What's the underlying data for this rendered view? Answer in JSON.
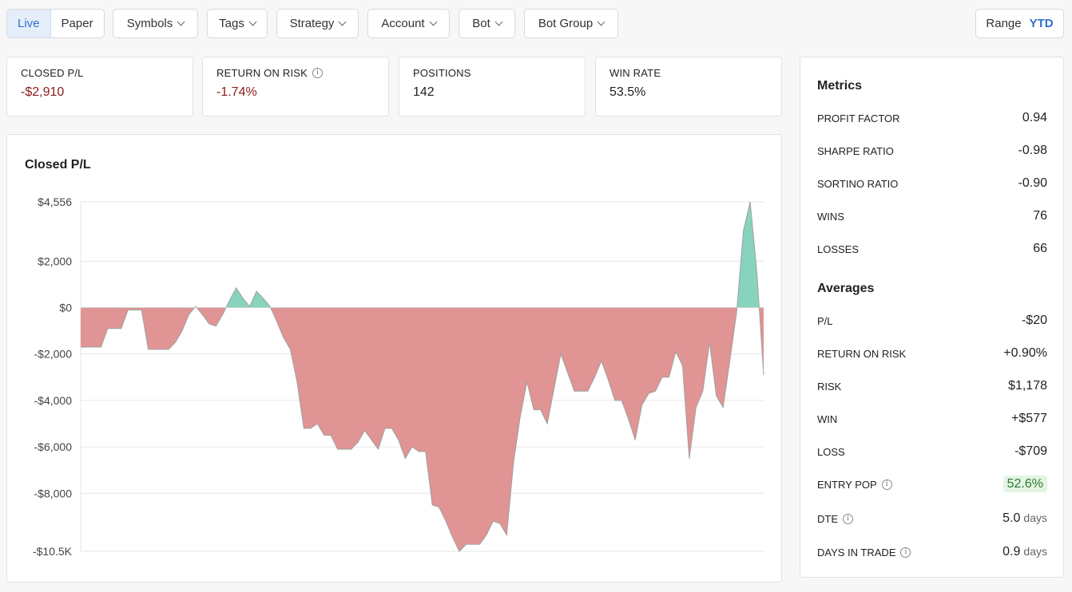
{
  "mode": {
    "live_label": "Live",
    "paper_label": "Paper",
    "active": "live"
  },
  "filters": [
    "Symbols",
    "Tags",
    "Strategy",
    "Account",
    "Bot",
    "Bot Group"
  ],
  "range": {
    "label": "Range",
    "value": "YTD"
  },
  "stats": [
    {
      "label": "CLOSED P/L",
      "value": "-$2,910",
      "info": false
    },
    {
      "label": "RETURN ON RISK",
      "value": "-1.74%",
      "info": true
    },
    {
      "label": "POSITIONS",
      "value": "142",
      "info": false
    },
    {
      "label": "WIN RATE",
      "value": "53.5%",
      "info": false
    }
  ],
  "chart_data": {
    "type": "area",
    "title": "Closed P/L",
    "y_ticks": [
      "$4,556",
      "$2,000",
      "$0",
      "-$2,000",
      "-$4,000",
      "-$6,000",
      "-$8,000",
      "-$10.5K"
    ],
    "y_tick_values": [
      4556,
      2000,
      0,
      -2000,
      -4000,
      -6000,
      -8000,
      -10500
    ],
    "ylim": [
      -10500,
      4556
    ],
    "positive_color": "#88d3bd",
    "negative_color": "#e09494",
    "values": [
      -1700,
      -1700,
      -1700,
      -1700,
      -900,
      -900,
      -900,
      -100,
      -100,
      -100,
      -1800,
      -1800,
      -1800,
      -1800,
      -1500,
      -1000,
      -300,
      50,
      -300,
      -700,
      -800,
      -300,
      300,
      850,
      400,
      50,
      700,
      400,
      50,
      -600,
      -1300,
      -1800,
      -3200,
      -5200,
      -5200,
      -5000,
      -5500,
      -5500,
      -6100,
      -6100,
      -6100,
      -5800,
      -5300,
      -5700,
      -6100,
      -5200,
      -5200,
      -5700,
      -6500,
      -6000,
      -6200,
      -6200,
      -8500,
      -8600,
      -9200,
      -9900,
      -10500,
      -10200,
      -10200,
      -10200,
      -9800,
      -9200,
      -9300,
      -9800,
      -6700,
      -4700,
      -3200,
      -4400,
      -4400,
      -5000,
      -3500,
      -2000,
      -2800,
      -3600,
      -3600,
      -3600,
      -3000,
      -2300,
      -3100,
      -4000,
      -4000,
      -4800,
      -5700,
      -4200,
      -3700,
      -3600,
      -3000,
      -3000,
      -1900,
      -2500,
      -6500,
      -4300,
      -3600,
      -1500,
      -3800,
      -4300,
      -2300,
      -200,
      3300,
      4556,
      1500,
      -2900
    ]
  },
  "metrics": {
    "title": "Metrics",
    "rows": [
      {
        "label": "PROFIT FACTOR",
        "value": "0.94"
      },
      {
        "label": "SHARPE RATIO",
        "value": "-0.98"
      },
      {
        "label": "SORTINO RATIO",
        "value": "-0.90"
      },
      {
        "label": "WINS",
        "value": "76"
      },
      {
        "label": "LOSSES",
        "value": "66"
      }
    ]
  },
  "averages": {
    "title": "Averages",
    "rows": [
      {
        "label": "P/L",
        "value": "-$20",
        "tone": "neg",
        "info": false
      },
      {
        "label": "RETURN ON RISK",
        "value": "+0.90%",
        "tone": "pos",
        "info": false
      },
      {
        "label": "RISK",
        "value": "$1,178",
        "tone": "",
        "info": false
      },
      {
        "label": "WIN",
        "value": "+$577",
        "tone": "pos",
        "info": false
      },
      {
        "label": "LOSS",
        "value": "-$709",
        "tone": "neg",
        "info": false
      },
      {
        "label": "ENTRY POP",
        "value": "52.6%",
        "tone": "pill",
        "info": true
      },
      {
        "label": "DTE",
        "value": "5.0",
        "unit": "days",
        "tone": "",
        "info": true
      },
      {
        "label": "DAYS IN TRADE",
        "value": "0.9",
        "unit": "days",
        "tone": "",
        "info": true
      }
    ]
  }
}
